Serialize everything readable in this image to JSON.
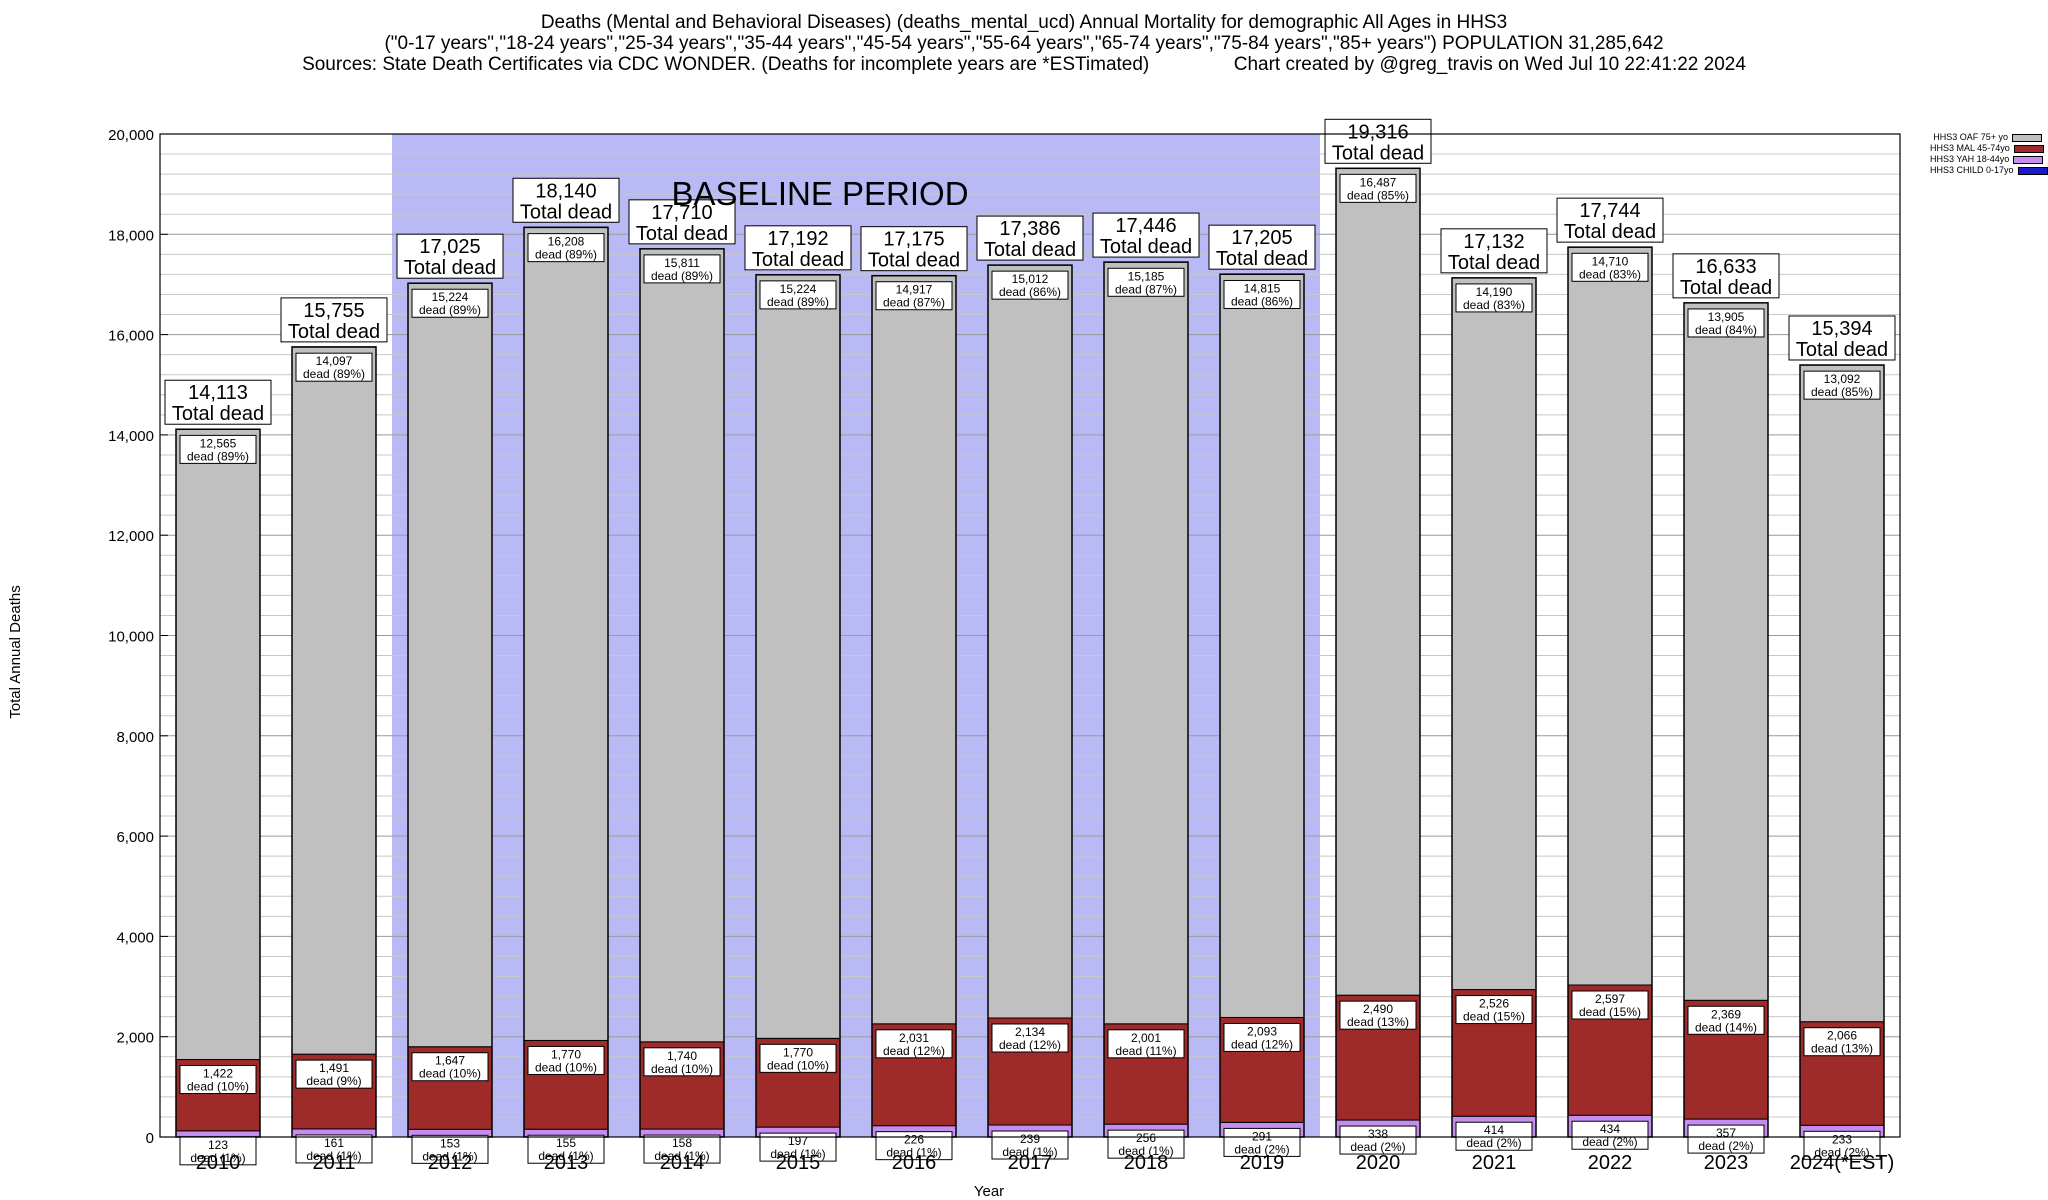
{
  "chart_data": {
    "type": "bar",
    "stacked": true,
    "title_lines": [
      "Deaths (Mental and Behavioral Diseases) (deaths_mental_ucd) Annual Mortality for demographic All Ages in HHS3",
      "(\"0-17 years\",\"18-24 years\",\"25-34 years\",\"35-44 years\",\"45-54 years\",\"55-64 years\",\"65-74 years\",\"75-84 years\",\"85+ years\") POPULATION 31,285,642",
      "Sources: State Death Certificates via CDC WONDER. (Deaths for incomplete years are *ESTimated)                Chart created by @greg_travis on Wed Jul 10 22:41:22 2024"
    ],
    "xlabel": "Year",
    "ylabel": "Total Annual Deaths",
    "ylim": [
      0,
      20000
    ],
    "yticks": [
      0,
      2000,
      4000,
      6000,
      8000,
      10000,
      12000,
      14000,
      16000,
      18000,
      20000
    ],
    "grid": true,
    "legend_position": "top-right",
    "baseline_label": "BASELINE PERIOD",
    "baseline_range": [
      "2012",
      "2019"
    ],
    "baseline_color": "#b9b9f5",
    "total_suffix": "Total dead",
    "segment_suffix": "dead",
    "categories": [
      "2010",
      "2011",
      "2012",
      "2013",
      "2014",
      "2015",
      "2016",
      "2017",
      "2018",
      "2019",
      "2020",
      "2021",
      "2022",
      "2023",
      "2024(*EST)"
    ],
    "totals": [
      14113,
      15755,
      17025,
      18140,
      17710,
      17192,
      17175,
      17386,
      17446,
      17205,
      19316,
      17132,
      17744,
      16633,
      15394
    ],
    "series": [
      {
        "name": "HHS3 CHILD 0-17yo",
        "color": "#1a1acc",
        "values": [
          0,
          0,
          0,
          0,
          0,
          0,
          0,
          0,
          0,
          0,
          0,
          0,
          0,
          0,
          0
        ],
        "pct": [
          0,
          0,
          0,
          0,
          0,
          0,
          0,
          0,
          0,
          0,
          0,
          0,
          0,
          0,
          0
        ],
        "labeled": false
      },
      {
        "name": "HHS3 YAH 18-44yo",
        "color": "#c58df0",
        "values": [
          123,
          161,
          153,
          155,
          158,
          197,
          226,
          239,
          256,
          291,
          338,
          414,
          434,
          357,
          233
        ],
        "pct": [
          1,
          1,
          1,
          1,
          1,
          1,
          1,
          1,
          1,
          2,
          2,
          2,
          2,
          2,
          2
        ],
        "labeled": true
      },
      {
        "name": "HHS3 MAL 45-74yo",
        "color": "#9e2a2a",
        "values": [
          1422,
          1491,
          1647,
          1770,
          1740,
          1770,
          2031,
          2134,
          2001,
          2093,
          2490,
          2526,
          2597,
          2369,
          2066
        ],
        "pct": [
          10,
          9,
          10,
          10,
          10,
          10,
          12,
          12,
          11,
          12,
          13,
          15,
          15,
          14,
          13
        ],
        "labeled": true
      },
      {
        "name": "HHS3 OAF 75+ yo",
        "color": "#c0c0c0",
        "values": [
          12565,
          14097,
          15224,
          16208,
          15811,
          15224,
          14917,
          15012,
          15185,
          14815,
          16487,
          14190,
          14710,
          13905,
          13092
        ],
        "pct": [
          89,
          89,
          89,
          89,
          89,
          89,
          87,
          86,
          87,
          86,
          85,
          83,
          83,
          84,
          85
        ],
        "labeled": true
      }
    ]
  }
}
